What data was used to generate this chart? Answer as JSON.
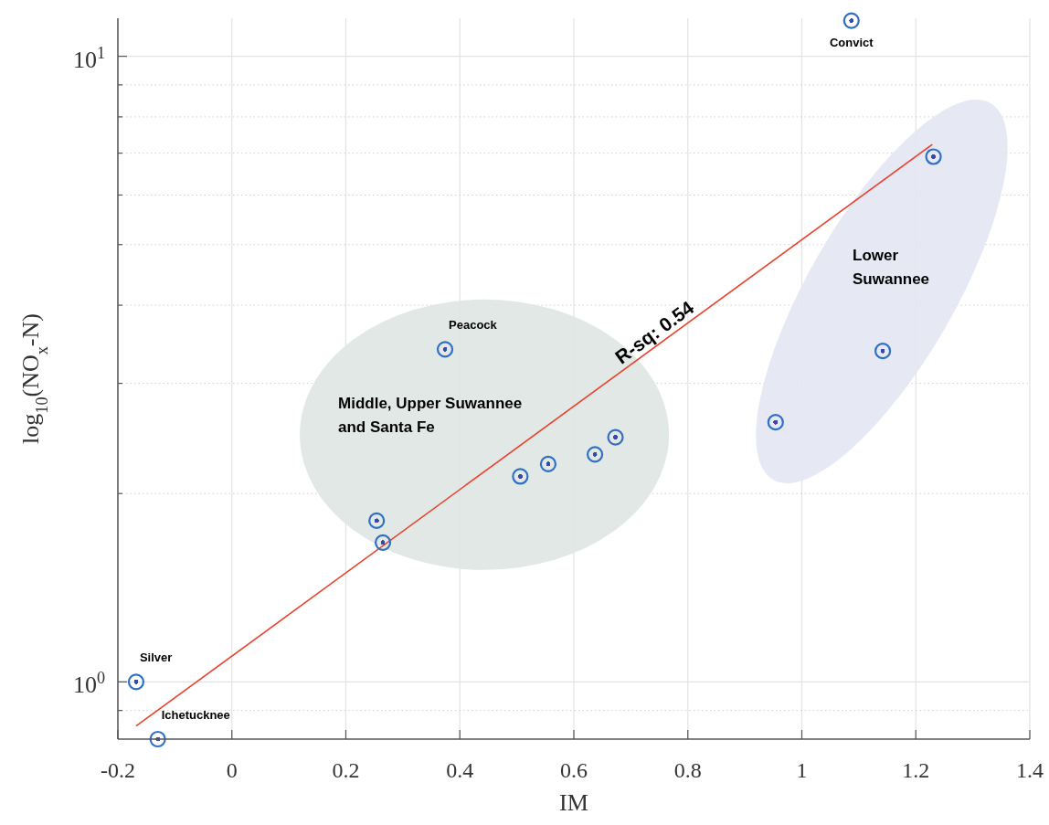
{
  "chart_data": {
    "type": "scatter",
    "xlabel": "IM",
    "ylabel": "log$_{10}$(NO$_{x}$-N)",
    "log": "y",
    "grid": true,
    "xlim": [
      -0.2,
      1.4
    ],
    "xticks": [
      -0.2,
      0,
      0.2,
      0.4,
      0.6,
      0.8,
      1,
      1.2,
      1.4
    ],
    "ylim": [
      0.81,
      11.5
    ],
    "yticks": [
      {
        "value": 0.9,
        "label": null
      },
      {
        "value": 1,
        "label": "10$^{0}$"
      },
      {
        "value": 2,
        "label": null
      },
      {
        "value": 3,
        "label": null
      },
      {
        "value": 4,
        "label": null
      },
      {
        "value": 5,
        "label": null
      },
      {
        "value": 6,
        "label": null
      },
      {
        "value": 7,
        "label": null
      },
      {
        "value": 8,
        "label": null
      },
      {
        "value": 9,
        "label": null
      },
      {
        "value": 10,
        "label": "10$^{1}$"
      }
    ],
    "series": [
      {
        "marker": "circle",
        "color": "#2f6fc4",
        "x": [
          1.087,
          1.231,
          1.142,
          0.954,
          0.374,
          0.673,
          0.637,
          0.555,
          0.506,
          0.254,
          0.265,
          -0.168,
          -0.13
        ],
        "values": [
          11.4,
          6.91,
          3.38,
          2.6,
          3.4,
          2.46,
          2.31,
          2.23,
          2.13,
          1.81,
          1.67,
          1.0,
          0.81
        ]
      },
      {
        "type": "line",
        "color": "#e8412c",
        "x": [
          -0.168,
          1.229
        ],
        "values": [
          0.85,
          7.23
        ]
      }
    ],
    "annotations": [
      {
        "text": "Convict",
        "x": 1.087,
        "y": 11.4
      },
      {
        "text": "Peacock",
        "x": 0.374,
        "y": 3.4
      },
      {
        "text": "Silver",
        "x": -0.168,
        "y": 1.0
      },
      {
        "text": "Ichetucknee",
        "x": -0.13,
        "y": 0.81
      },
      "R-sq: 0.54",
      "Middle, Upper Suwannee\nand Santa Fe",
      "Lower\nSuwannee"
    ]
  }
}
